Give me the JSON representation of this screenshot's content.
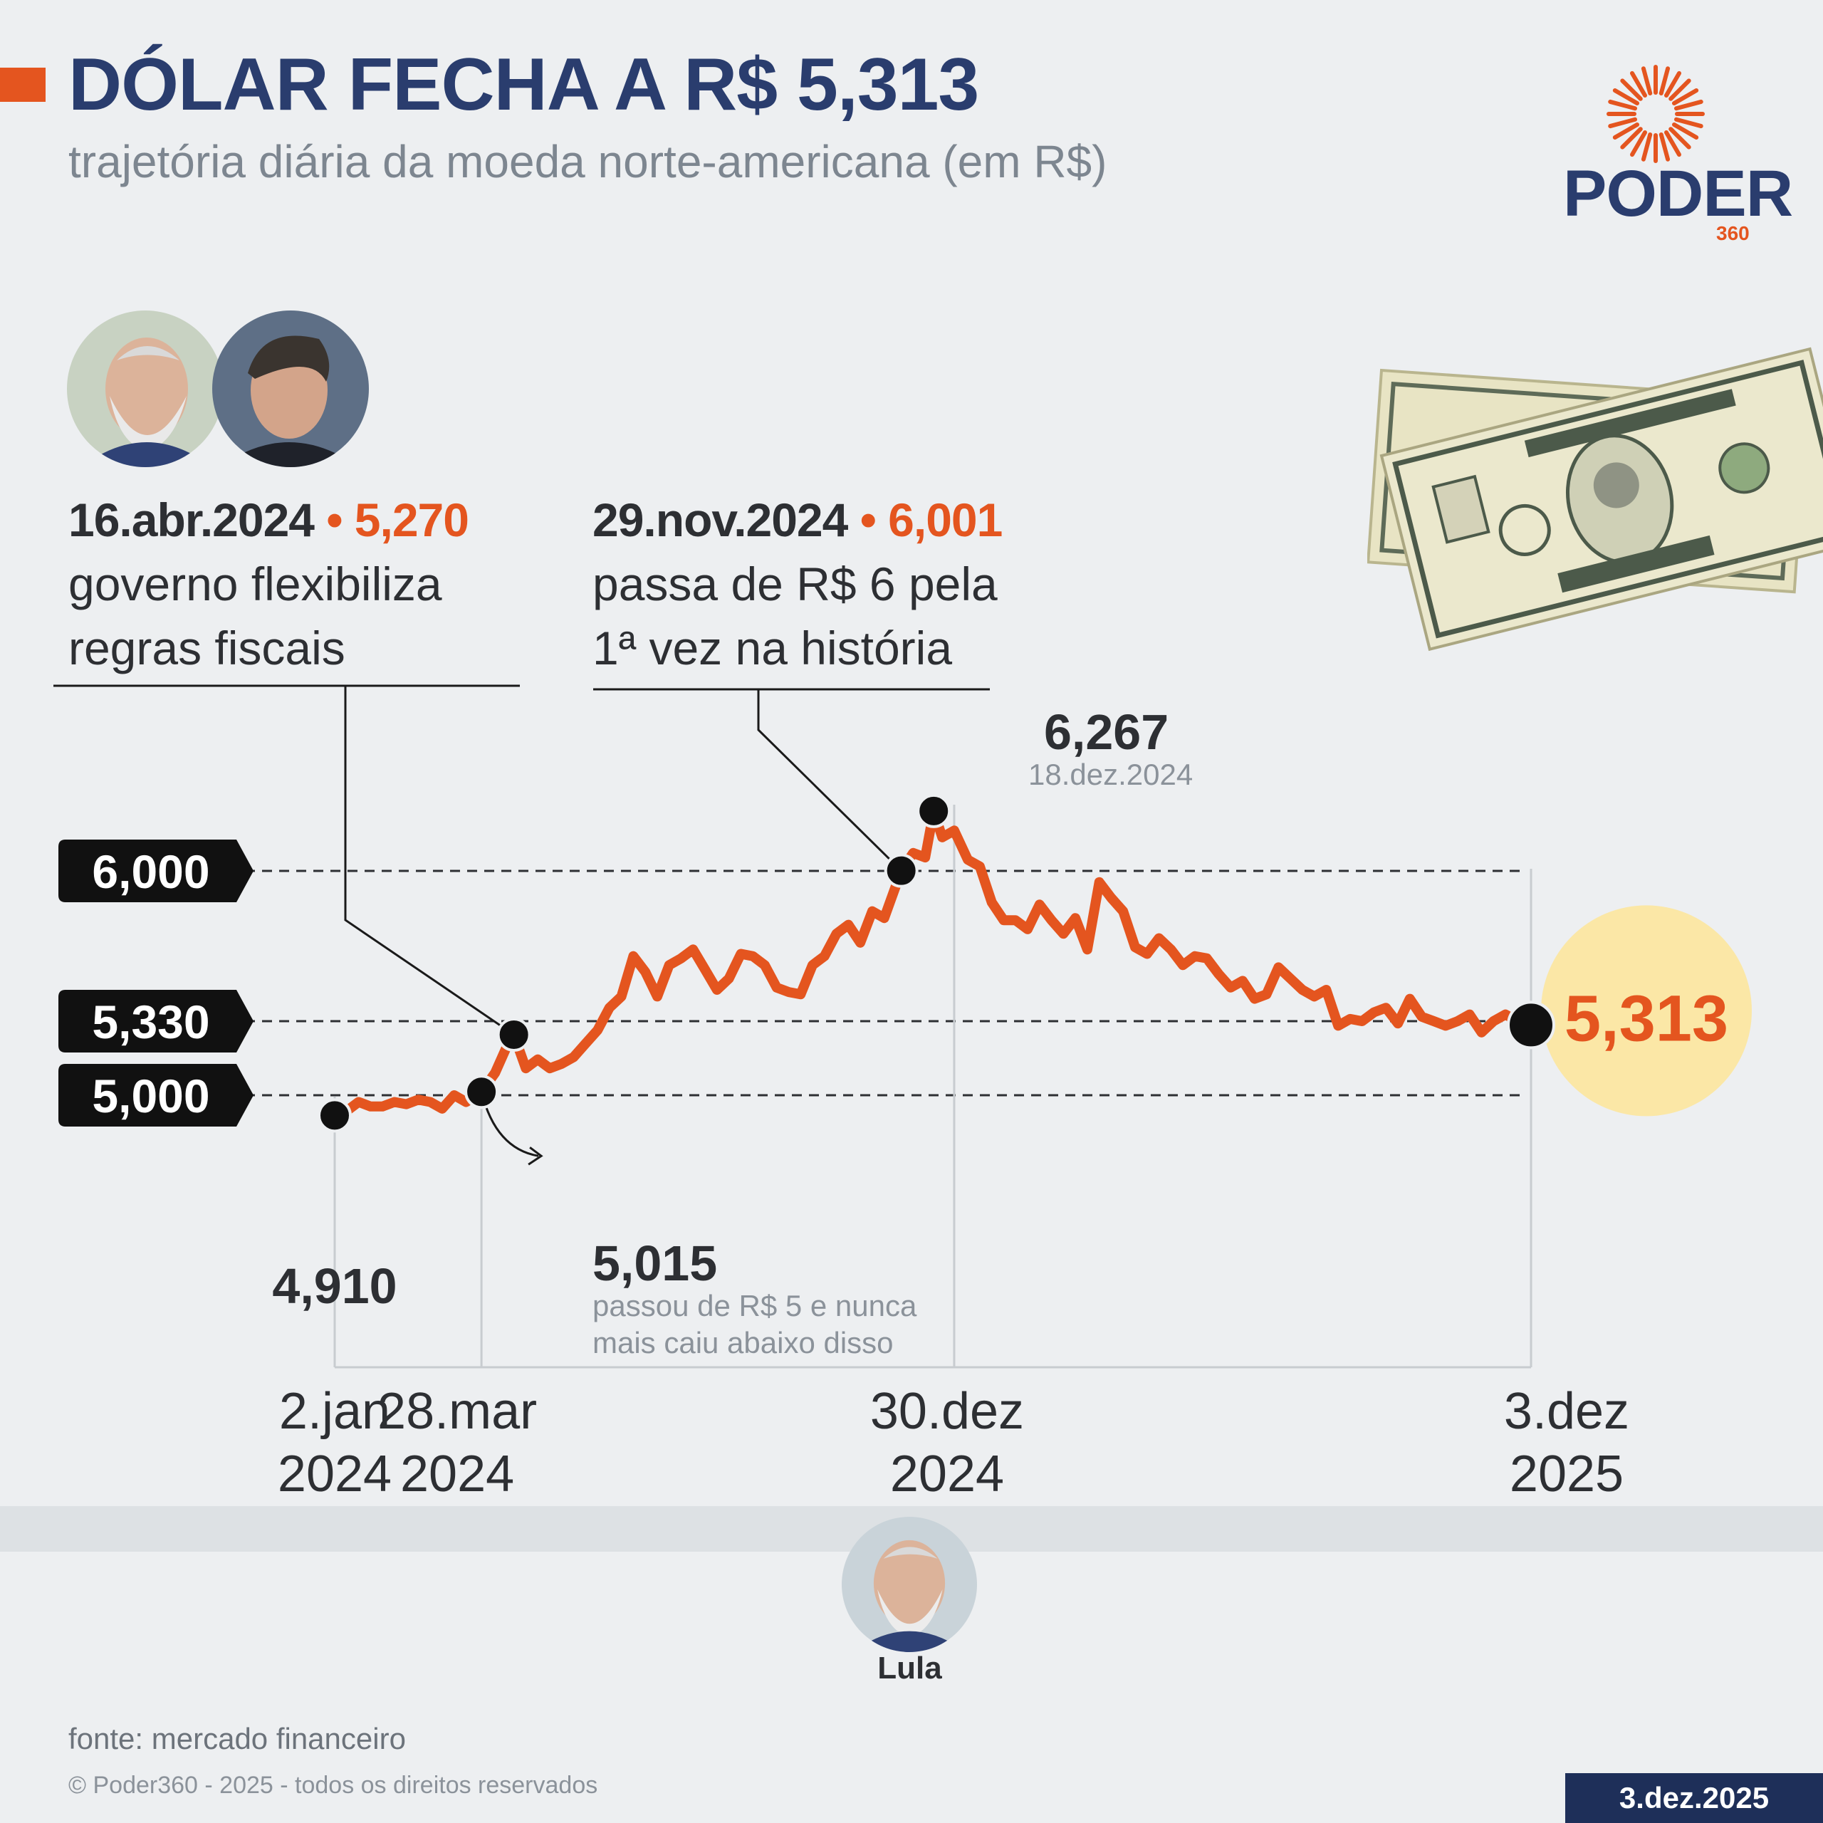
{
  "header": {
    "title": "DÓLAR FECHA A R$ 5,313",
    "subtitle": "trajetória diária da moeda norte-americana (em R$)"
  },
  "logo": {
    "name": "PODER",
    "number": "360",
    "icon": "sun-burst-icon"
  },
  "annotations": [
    {
      "date": "16.abr.2024",
      "bullet": "•",
      "value": "5,270",
      "lines": [
        "governo flexibiliza",
        "regras fiscais"
      ]
    },
    {
      "date": "29.nov.2024",
      "bullet": "•",
      "value": "6,001",
      "lines": [
        "passa de R$ 6 pela",
        "1ª vez na história"
      ]
    }
  ],
  "photos": {
    "left": "lula-photo-icon",
    "right": "haddad-photo-icon",
    "bottom": "lula-photo-icon"
  },
  "bills_icon": "dollar-bills-icon",
  "chart_data": {
    "type": "line",
    "title": "DÓLAR FECHA A R$ 5,313",
    "subtitle": "trajetória diária da moeda norte-americana (em R$)",
    "y_unit": "R$",
    "reference_lines": [
      {
        "label": "6,000",
        "value": 6.0
      },
      {
        "label": "5,330",
        "value": 5.33
      },
      {
        "label": "5,000",
        "value": 5.0
      }
    ],
    "x_ticks": [
      {
        "line1": "2.jan",
        "line2": "2024",
        "date": "2024-01-02"
      },
      {
        "line1": "28.mar",
        "line2": "2024",
        "date": "2024-03-28"
      },
      {
        "line1": "30.dez",
        "line2": "2024",
        "date": "2024-12-30"
      },
      {
        "line1": "3.dez",
        "line2": "2025",
        "date": "2025-12-03"
      }
    ],
    "points_labeled": [
      {
        "label": "4,910",
        "date": "2024-01-02",
        "value": 4.91
      },
      {
        "label": "5,015",
        "date": "2024-03-28",
        "value": 5.015,
        "note1": "passou de R$ 5 e nunca",
        "note2": "mais caiu abaixo disso"
      },
      {
        "label": "5,270",
        "date": "2024-04-16",
        "value": 5.27
      },
      {
        "label": "6,001",
        "date": "2024-11-29",
        "value": 6.001
      },
      {
        "label": "6,267",
        "date": "2024-12-18",
        "value": 6.267,
        "sublabel": "18.dez.2024"
      },
      {
        "label": "5,313",
        "date": "2025-12-03",
        "value": 5.313
      }
    ],
    "series": [
      {
        "color": "#e4551f",
        "x": [
          "2024-01-02",
          "2024-01-09",
          "2024-01-16",
          "2024-01-23",
          "2024-01-30",
          "2024-02-06",
          "2024-02-13",
          "2024-02-20",
          "2024-02-27",
          "2024-03-05",
          "2024-03-12",
          "2024-03-19",
          "2024-03-28",
          "2024-04-05",
          "2024-04-12",
          "2024-04-16",
          "2024-04-23",
          "2024-04-30",
          "2024-05-07",
          "2024-05-14",
          "2024-05-21",
          "2024-05-28",
          "2024-06-04",
          "2024-06-11",
          "2024-06-18",
          "2024-06-25",
          "2024-07-02",
          "2024-07-09",
          "2024-07-16",
          "2024-07-23",
          "2024-07-30",
          "2024-08-06",
          "2024-08-13",
          "2024-08-20",
          "2024-08-27",
          "2024-09-03",
          "2024-09-10",
          "2024-09-17",
          "2024-09-24",
          "2024-10-01",
          "2024-10-08",
          "2024-10-15",
          "2024-10-22",
          "2024-10-29",
          "2024-11-05",
          "2024-11-12",
          "2024-11-19",
          "2024-11-29",
          "2024-12-06",
          "2024-12-13",
          "2024-12-18",
          "2024-12-23",
          "2024-12-30",
          "2025-01-07",
          "2025-01-14",
          "2025-01-21",
          "2025-01-28",
          "2025-02-04",
          "2025-02-11",
          "2025-02-18",
          "2025-02-25",
          "2025-03-04",
          "2025-03-11",
          "2025-03-18",
          "2025-03-25",
          "2025-04-01",
          "2025-04-08",
          "2025-04-15",
          "2025-04-22",
          "2025-04-29",
          "2025-05-06",
          "2025-05-13",
          "2025-05-20",
          "2025-05-27",
          "2025-06-03",
          "2025-06-10",
          "2025-06-17",
          "2025-06-24",
          "2025-07-01",
          "2025-07-08",
          "2025-07-15",
          "2025-07-22",
          "2025-07-29",
          "2025-08-05",
          "2025-08-12",
          "2025-08-19",
          "2025-08-26",
          "2025-09-02",
          "2025-09-09",
          "2025-09-16",
          "2025-09-23",
          "2025-09-30",
          "2025-10-07",
          "2025-10-14",
          "2025-10-21",
          "2025-10-28",
          "2025-11-04",
          "2025-11-11",
          "2025-11-18",
          "2025-11-25",
          "2025-12-03"
        ],
        "y": [
          4.91,
          4.93,
          4.97,
          4.95,
          4.95,
          4.97,
          4.96,
          4.98,
          4.97,
          4.94,
          5.0,
          4.97,
          5.015,
          5.1,
          5.22,
          5.27,
          5.12,
          5.16,
          5.12,
          5.14,
          5.17,
          5.23,
          5.29,
          5.39,
          5.44,
          5.62,
          5.55,
          5.44,
          5.58,
          5.61,
          5.65,
          5.56,
          5.47,
          5.52,
          5.63,
          5.62,
          5.58,
          5.48,
          5.46,
          5.45,
          5.58,
          5.62,
          5.72,
          5.76,
          5.68,
          5.82,
          5.79,
          6.001,
          6.08,
          6.06,
          6.267,
          6.15,
          6.18,
          6.05,
          6.02,
          5.86,
          5.78,
          5.78,
          5.74,
          5.85,
          5.78,
          5.72,
          5.79,
          5.65,
          5.95,
          5.88,
          5.82,
          5.66,
          5.63,
          5.7,
          5.65,
          5.58,
          5.62,
          5.61,
          5.54,
          5.48,
          5.51,
          5.43,
          5.45,
          5.57,
          5.52,
          5.47,
          5.44,
          5.47,
          5.31,
          5.34,
          5.33,
          5.37,
          5.39,
          5.32,
          5.43,
          5.35,
          5.33,
          5.31,
          5.33,
          5.36,
          5.28,
          5.33,
          5.36,
          5.33,
          5.313
        ]
      }
    ],
    "grid": false
  },
  "bottom": {
    "person_name": "Lula"
  },
  "footer": {
    "source": "fonte: mercado financeiro",
    "copyright": "© Poder360 - 2025 - todos os direitos reservados",
    "date": "3.dez.2025"
  }
}
